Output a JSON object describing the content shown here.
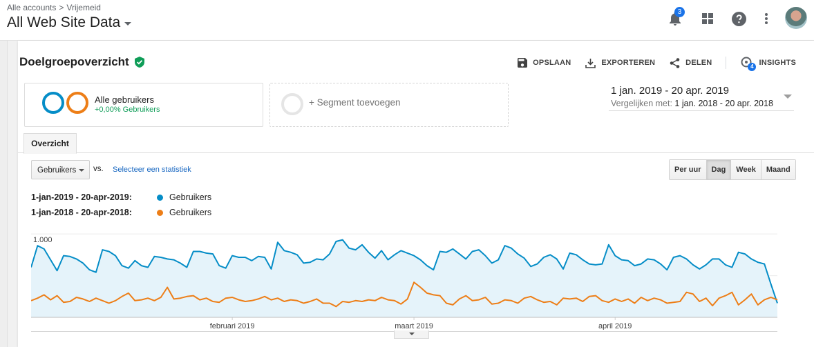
{
  "header": {
    "breadcrumb": [
      "Alle accounts",
      "Vrijemeid"
    ],
    "breadcrumb_separator": ">",
    "view_title": "All Web Site Data",
    "notifications_count": "3",
    "icons": [
      "bell-icon",
      "apps-grid-icon",
      "help-icon",
      "more-vert-icon",
      "avatar"
    ]
  },
  "report": {
    "title": "Doelgroepoverzicht",
    "verified_icon": "shield-check-icon",
    "actions": {
      "save": "OPSLAAN",
      "export": "EXPORTEREN",
      "share": "DELEN",
      "insights": "INSIGHTS",
      "insights_count": "4"
    }
  },
  "segments": {
    "active_label": "Alle gebruikers",
    "active_sub": "+0,00% Gebruikers",
    "add_label": "+ Segment toevoegen",
    "colors": [
      "#058dc7",
      "#ed7e17"
    ]
  },
  "date_range": {
    "main": "1 jan. 2019 - 20 apr. 2019",
    "compare_prefix": "Vergelijken met:",
    "compare_range": "1 jan. 2018 - 20 apr. 2018"
  },
  "tabs": [
    {
      "label": "Overzicht",
      "active": true
    }
  ],
  "controls": {
    "metric": "Gebruikers",
    "vs": "vs.",
    "select_stat": "Selecteer een statistiek",
    "periods": [
      {
        "label": "Per uur",
        "active": false
      },
      {
        "label": "Dag",
        "active": true
      },
      {
        "label": "Week",
        "active": false
      },
      {
        "label": "Maand",
        "active": false
      }
    ]
  },
  "legend": [
    {
      "range": "1-jan-2019 - 20-apr-2019:",
      "metric": "Gebruikers",
      "color": "#058dc7"
    },
    {
      "range": "1-jan-2018 - 20-apr-2018:",
      "metric": "Gebruikers",
      "color": "#ed7e17"
    }
  ],
  "chart_data": {
    "type": "area",
    "title": "",
    "xlabel": "",
    "ylabel": "",
    "ylim": [
      0,
      1000
    ],
    "y_ticks": [
      "1.000",
      "500"
    ],
    "y_tick_values": [
      1000,
      500
    ],
    "x_tick_labels": [
      "februari 2019",
      "maart 2019",
      "april 2019"
    ],
    "x_tick_days": [
      32,
      60,
      91
    ],
    "x_start": "2019-01-01",
    "x_end": "2019-04-20",
    "grid": true,
    "series": [
      {
        "name": "Gebruikers",
        "period": "1-jan-2019 - 20-apr-2019",
        "color": "#058dc7",
        "values": [
          600,
          860,
          820,
          690,
          560,
          740,
          730,
          700,
          650,
          570,
          540,
          810,
          790,
          740,
          620,
          590,
          680,
          620,
          600,
          730,
          720,
          700,
          690,
          650,
          600,
          790,
          790,
          770,
          760,
          620,
          590,
          740,
          720,
          720,
          680,
          730,
          720,
          580,
          900,
          800,
          780,
          750,
          650,
          660,
          700,
          690,
          760,
          910,
          930,
          830,
          810,
          870,
          780,
          710,
          800,
          690,
          750,
          800,
          770,
          740,
          690,
          620,
          570,
          790,
          780,
          820,
          760,
          700,
          790,
          810,
          740,
          650,
          690,
          860,
          830,
          760,
          710,
          610,
          640,
          720,
          750,
          700,
          580,
          770,
          750,
          690,
          640,
          630,
          640,
          870,
          740,
          690,
          680,
          620,
          640,
          700,
          690,
          640,
          570,
          720,
          740,
          700,
          630,
          580,
          630,
          700,
          700,
          630,
          600,
          780,
          760,
          700,
          660,
          640,
          400,
          170
        ]
      },
      {
        "name": "Gebruikers",
        "period": "1-jan-2018 - 20-apr-2018",
        "color": "#ed7e17",
        "values": [
          200,
          230,
          270,
          210,
          260,
          180,
          190,
          240,
          220,
          190,
          230,
          200,
          170,
          200,
          250,
          290,
          200,
          210,
          230,
          200,
          240,
          360,
          220,
          230,
          250,
          260,
          210,
          230,
          190,
          180,
          230,
          240,
          210,
          190,
          200,
          220,
          250,
          210,
          230,
          190,
          210,
          200,
          170,
          190,
          220,
          170,
          170,
          130,
          190,
          180,
          200,
          190,
          210,
          200,
          240,
          210,
          200,
          160,
          220,
          420,
          360,
          290,
          270,
          260,
          170,
          150,
          220,
          260,
          200,
          210,
          240,
          160,
          170,
          210,
          200,
          170,
          230,
          250,
          210,
          180,
          190,
          150,
          230,
          220,
          230,
          190,
          250,
          260,
          200,
          180,
          220,
          190,
          220,
          170,
          240,
          200,
          230,
          210,
          170,
          180,
          190,
          300,
          280,
          190,
          230,
          140,
          230,
          260,
          300,
          150,
          210,
          280,
          150,
          210,
          240,
          210
        ]
      }
    ]
  }
}
